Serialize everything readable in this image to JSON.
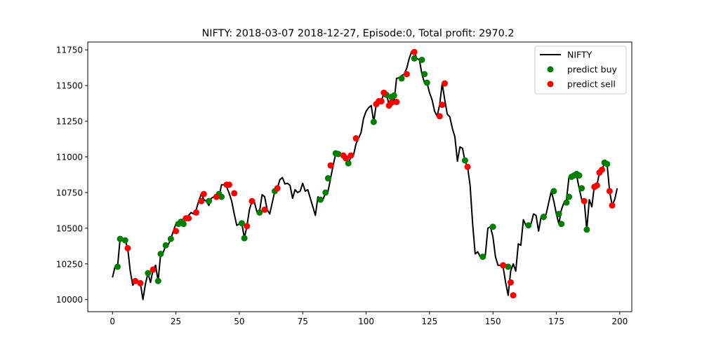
{
  "chart_data": {
    "type": "line",
    "title": "NIFTY: 2018-03-07 2018-12-27,  Episode:0, Total profit: 2970.2",
    "xlabel": "",
    "ylabel": "",
    "xlim": [
      -9.75,
      204.75
    ],
    "ylim": [
      9915,
      11805
    ],
    "xticks": [
      0,
      25,
      50,
      75,
      100,
      125,
      150,
      175,
      200
    ],
    "yticks": [
      10000,
      10250,
      10500,
      10750,
      11000,
      11250,
      11500,
      11750
    ],
    "grid": false,
    "legend": {
      "position": "top-right",
      "entries": [
        "NIFTY",
        "predict buy",
        "predict sell"
      ]
    },
    "colors": {
      "line": "#000000",
      "buy": "#008000",
      "sell": "#ff0000"
    },
    "series": [
      {
        "name": "NIFTY",
        "x": [
          0,
          1,
          2,
          3,
          4,
          5,
          6,
          7,
          8,
          9,
          10,
          11,
          12,
          13,
          14,
          15,
          16,
          17,
          18,
          19,
          20,
          21,
          22,
          23,
          24,
          25,
          26,
          27,
          28,
          29,
          30,
          31,
          32,
          33,
          34,
          35,
          36,
          37,
          38,
          39,
          40,
          41,
          42,
          43,
          44,
          45,
          46,
          47,
          48,
          49,
          50,
          51,
          52,
          53,
          54,
          55,
          56,
          57,
          58,
          59,
          60,
          61,
          62,
          63,
          64,
          65,
          66,
          67,
          68,
          69,
          70,
          71,
          72,
          73,
          74,
          75,
          76,
          77,
          78,
          79,
          80,
          81,
          82,
          83,
          84,
          85,
          86,
          87,
          88,
          89,
          90,
          91,
          92,
          93,
          94,
          95,
          96,
          97,
          98,
          99,
          100,
          101,
          102,
          103,
          104,
          105,
          106,
          107,
          108,
          109,
          110,
          111,
          112,
          113,
          114,
          115,
          116,
          117,
          118,
          119,
          120,
          121,
          122,
          123,
          124,
          125,
          126,
          127,
          128,
          129,
          130,
          131,
          132,
          133,
          134,
          135,
          136,
          137,
          138,
          139,
          140,
          141,
          142,
          143,
          144,
          145,
          146,
          147,
          148,
          149,
          150,
          151,
          152,
          153,
          154,
          155,
          156,
          157,
          158,
          159,
          160,
          161,
          162,
          163,
          164,
          165,
          166,
          167,
          168,
          169,
          170,
          171,
          172,
          173,
          174,
          175,
          176,
          177,
          178,
          179,
          180,
          181,
          182,
          183,
          184,
          185,
          186,
          187,
          188,
          189,
          190,
          191,
          192,
          193,
          194,
          195,
          196,
          197,
          198,
          199
        ],
        "values": [
          10155,
          10230,
          10230,
          10425,
          10420,
          10415,
          10360,
          10200,
          10100,
          10130,
          10115,
          10115,
          10000,
          10110,
          10185,
          10120,
          10210,
          10240,
          10130,
          10320,
          10330,
          10380,
          10385,
          10425,
          10480,
          10530,
          10545,
          10530,
          10570,
          10570,
          10590,
          10610,
          10600,
          10630,
          10690,
          10740,
          10700,
          10690,
          10660,
          10710,
          10720,
          10740,
          10720,
          10805,
          10805,
          10790,
          10745,
          10690,
          10600,
          10520,
          10530,
          10535,
          10430,
          10515,
          10630,
          10690,
          10680,
          10610,
          10620,
          10735,
          10720,
          10630,
          10600,
          10680,
          10760,
          10780,
          10840,
          10855,
          10810,
          10815,
          10800,
          10710,
          10770,
          10750,
          10760,
          10815,
          10760,
          10770,
          10710,
          10650,
          10590,
          10720,
          10690,
          10700,
          10750,
          10760,
          10850,
          10940,
          11020,
          11025,
          11010,
          11010,
          10990,
          10955,
          11000,
          11010,
          11090,
          11130,
          11170,
          11270,
          11320,
          11345,
          11360,
          11245,
          11370,
          11390,
          11390,
          11450,
          11455,
          11360,
          11420,
          11385,
          11550,
          11555,
          11570,
          11580,
          11620,
          11690,
          11740,
          11735,
          11690,
          11680,
          11580,
          11520,
          11520,
          11450,
          11400,
          11320,
          11285,
          11365,
          11515,
          11400,
          11300,
          11280,
          11200,
          11140,
          10970,
          11070,
          11060,
          10970,
          10930,
          10800,
          10530,
          10320,
          10335,
          10300,
          10300,
          10310,
          10500,
          10510,
          10440,
          10300,
          10240,
          10240,
          10230,
          10120,
          10030,
          10200,
          10250,
          10200,
          10390,
          10380,
          10560,
          10520,
          10520,
          10530,
          10600,
          10590,
          10480,
          10580,
          10560,
          10600,
          10680,
          10760,
          10690,
          10600,
          10530,
          10630,
          10680,
          10700,
          10860,
          10870,
          10880,
          10870,
          10780,
          10700,
          10690,
          10490,
          10700,
          10650,
          10800,
          10800,
          10890,
          10910,
          10960,
          10950,
          10760,
          10660,
          10700,
          10780
        ]
      },
      {
        "name": "predict buy",
        "x": [
          2,
          3,
          5,
          14,
          18,
          19,
          21,
          23,
          26,
          27,
          28,
          38,
          42,
          43,
          51,
          52,
          58,
          64,
          82,
          84,
          85,
          88,
          89,
          93,
          103,
          108,
          110,
          111,
          114,
          119,
          122,
          123,
          124,
          139,
          146,
          150,
          156,
          164,
          170,
          174,
          176,
          177,
          179,
          180,
          181,
          182,
          183,
          184,
          185,
          187,
          194,
          195
        ],
        "values": [
          10230,
          10425,
          10415,
          10185,
          10130,
          10320,
          10380,
          10425,
          10530,
          10545,
          10530,
          10690,
          10740,
          10720,
          10535,
          10430,
          10610,
          10760,
          10700,
          10750,
          10850,
          11025,
          11020,
          10955,
          11245,
          11435,
          11420,
          11430,
          11550,
          11690,
          11680,
          11580,
          11520,
          10975,
          10300,
          10510,
          10230,
          10520,
          10580,
          10760,
          10600,
          10530,
          10680,
          10720,
          10860,
          10870,
          10880,
          10870,
          10780,
          10490,
          10960,
          10950
        ]
      },
      {
        "name": "predict sell",
        "x": [
          6,
          9,
          11,
          16,
          25,
          29,
          30,
          33,
          35,
          36,
          41,
          45,
          46,
          48,
          53,
          55,
          60,
          65,
          86,
          91,
          92,
          94,
          96,
          104,
          105,
          106,
          107,
          109,
          110,
          112,
          116,
          119,
          129,
          130,
          131,
          140,
          154,
          157,
          158,
          186,
          190,
          191,
          192,
          193,
          196,
          197
        ],
        "values": [
          10360,
          10130,
          10115,
          10210,
          10480,
          10570,
          10570,
          10610,
          10690,
          10740,
          10720,
          10805,
          10805,
          10745,
          10515,
          10690,
          10630,
          10780,
          10940,
          11010,
          10990,
          11010,
          11130,
          11370,
          11390,
          11390,
          11450,
          11360,
          11380,
          11385,
          11580,
          11735,
          11285,
          11365,
          11515,
          10930,
          10240,
          10120,
          10030,
          10690,
          10790,
          10800,
          10890,
          10910,
          10760,
          10660
        ]
      }
    ]
  }
}
